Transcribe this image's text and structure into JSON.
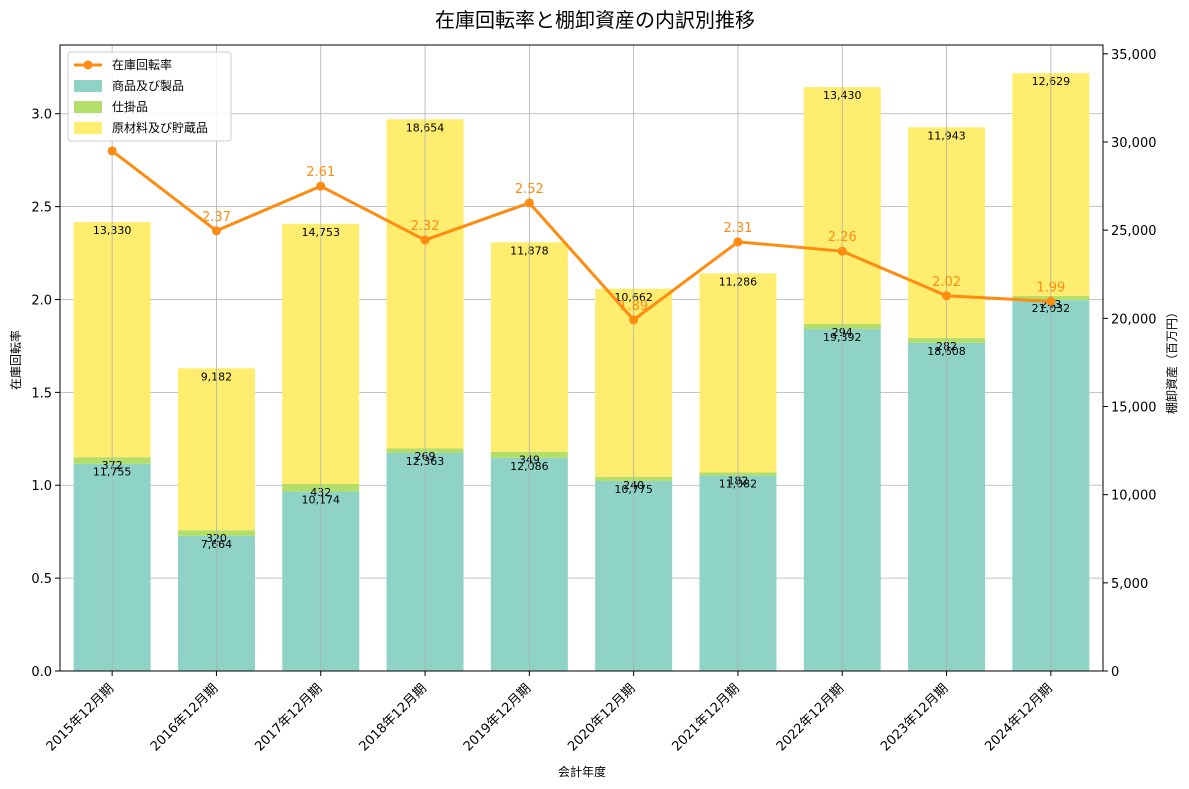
{
  "chart_data": {
    "type": "bar",
    "stacked": true,
    "title": "在庫回転率と棚卸資産の内訳別推移",
    "xlabel": "会計年度",
    "ylabel_left": "在庫回転率",
    "ylabel_right": "棚卸資産（百万円）",
    "ylim_left": [
      0,
      3.37
    ],
    "ylim_right": [
      0,
      35500
    ],
    "yticks_left": [
      0.0,
      0.5,
      1.0,
      1.5,
      2.0,
      2.5,
      3.0
    ],
    "yticks_left_labels": [
      "0.0",
      "0.5",
      "1.0",
      "1.5",
      "2.0",
      "2.5",
      "3.0"
    ],
    "yticks_right": [
      0,
      5000,
      10000,
      15000,
      20000,
      25000,
      30000,
      35000
    ],
    "yticks_right_labels": [
      "0",
      "5,000",
      "10,000",
      "15,000",
      "20,000",
      "25,000",
      "30,000",
      "35,000"
    ],
    "grid": true,
    "legend_position": "top-left",
    "categories": [
      "2015年12月期",
      "2016年12月期",
      "2017年12月期",
      "2018年12月期",
      "2019年12月期",
      "2020年12月期",
      "2021年12月期",
      "2022年12月期",
      "2023年12月期",
      "2024年12月期"
    ],
    "series": [
      {
        "name": "商品及び製品",
        "color": "#8fd3c7",
        "values": [
          11755,
          7664,
          10174,
          12363,
          12086,
          10775,
          11082,
          19392,
          18608,
          21032
        ],
        "labels": [
          "11,755",
          "7,664",
          "10,174",
          "12,363",
          "12,086",
          "10,775",
          "11,082",
          "19,392",
          "18,608",
          "21,032"
        ]
      },
      {
        "name": "仕掛品",
        "color": "#b3de69",
        "values": [
          372,
          320,
          432,
          269,
          349,
          240,
          182,
          294,
          282,
          243
        ],
        "labels": [
          "372",
          "320",
          "432",
          "269",
          "349",
          "240",
          "182",
          "294",
          "282",
          "243"
        ]
      },
      {
        "name": "原材料及び貯蔵品",
        "color": "#ffed6f",
        "values": [
          13330,
          9182,
          14753,
          18654,
          11878,
          10662,
          11286,
          13430,
          11943,
          12629
        ],
        "labels": [
          "13,330",
          "9,182",
          "14,753",
          "18,654",
          "11,878",
          "10,662",
          "11,286",
          "13,430",
          "11,943",
          "12,629"
        ]
      }
    ],
    "line": {
      "name": "在庫回転率",
      "color": "#ff8c10",
      "values": [
        2.8,
        2.37,
        2.61,
        2.32,
        2.52,
        1.89,
        2.31,
        2.26,
        2.02,
        1.99
      ],
      "labels": [
        "",
        "2.37",
        "2.61",
        "2.32",
        "2.52",
        "1.89",
        "2.31",
        "2.26",
        "2.02",
        "1.99"
      ]
    }
  }
}
